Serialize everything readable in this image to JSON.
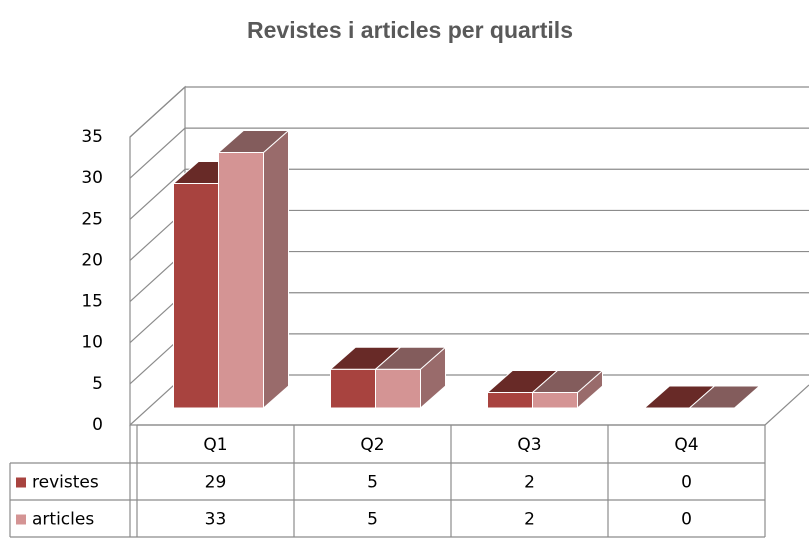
{
  "chart_data": {
    "type": "bar3d",
    "title": "Revistes i articles per quartils",
    "categories": [
      "Q1",
      "Q2",
      "Q3",
      "Q4"
    ],
    "series": [
      {
        "name": "revistes",
        "color": "#a8433f",
        "values": [
          29,
          5,
          2,
          0
        ]
      },
      {
        "name": "articles",
        "color": "#d49494",
        "values": [
          33,
          5,
          2,
          0
        ]
      }
    ],
    "ylim": [
      0,
      35
    ],
    "yticks": [
      0,
      5,
      10,
      15,
      20,
      25,
      30,
      35
    ],
    "grid": true,
    "data_table": true
  }
}
